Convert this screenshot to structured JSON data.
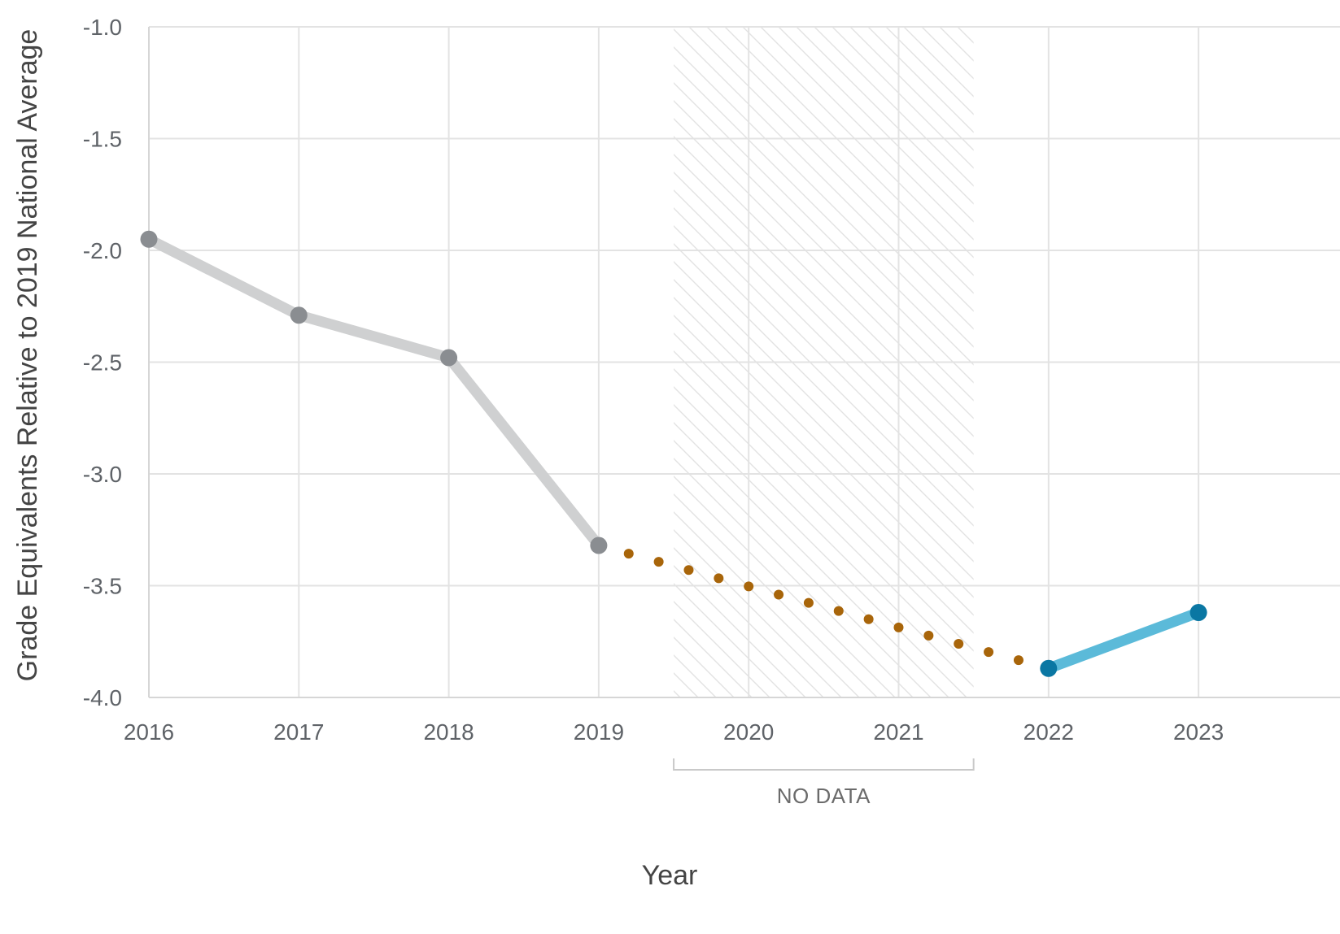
{
  "chart_data": {
    "type": "line",
    "xlabel": "Year",
    "ylabel": "Grade Equivalents Relative to 2019 National Average",
    "xlim": [
      2016,
      2023.5
    ],
    "ylim": [
      -4.0,
      -1.0
    ],
    "x_ticks": [
      2016,
      2017,
      2018,
      2019,
      2020,
      2021,
      2022,
      2023
    ],
    "y_ticks": [
      -1.0,
      -1.5,
      -2.0,
      -2.5,
      -3.0,
      -3.5,
      -4.0
    ],
    "y_tick_labels": [
      "-1.0",
      "-1.5",
      "-2.0",
      "-2.5",
      "-3.0",
      "-3.5",
      "-4.0"
    ],
    "grid": true,
    "no_data_region": {
      "label": "NO DATA",
      "x_start": 2019.5,
      "x_end": 2021.5
    },
    "series": [
      {
        "style": "solid",
        "color": "#cfd0d1",
        "marker_color": "#8a8d91",
        "x": [
          2016,
          2017,
          2018,
          2019
        ],
        "y": [
          -1.95,
          -2.29,
          -2.48,
          -3.32
        ]
      },
      {
        "style": "dotted",
        "color": "#a8650a",
        "x": [
          2019,
          2022
        ],
        "y": [
          -3.32,
          -3.87
        ]
      },
      {
        "style": "solid",
        "color": "#5bbad9",
        "marker_color": "#0a77a3",
        "x": [
          2022,
          2023
        ],
        "y": [
          -3.87,
          -3.62
        ]
      }
    ]
  }
}
